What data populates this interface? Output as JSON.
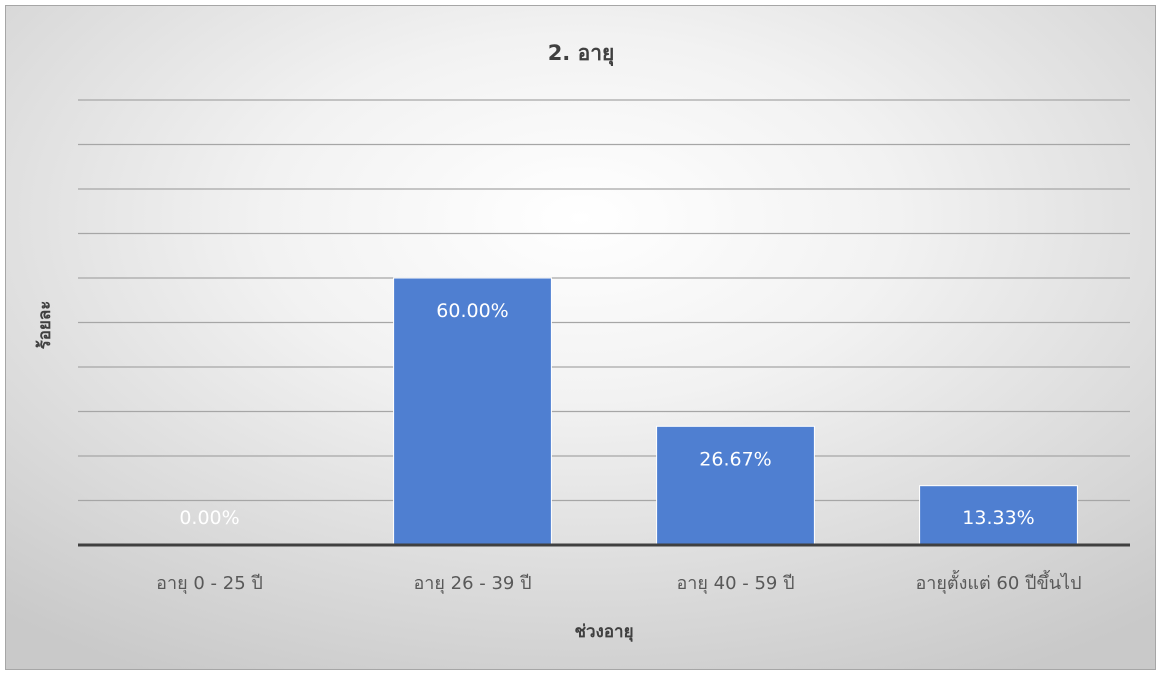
{
  "chart_data": {
    "type": "bar",
    "title": "2. อายุ",
    "xlabel": "ช่วงอายุ",
    "ylabel": "ร้อยละ",
    "categories": [
      "อายุ 0 - 25 ปี",
      "อายุ 26 - 39 ปี",
      "อายุ 40 - 59 ปี",
      "อายุตั้งแต่ 60 ปีขึ้นไป"
    ],
    "values": [
      0,
      60,
      26.67,
      13.33
    ],
    "data_labels": [
      "0.00%",
      "60.00%",
      "26.67%",
      "13.33%"
    ],
    "ylim": [
      0,
      100
    ],
    "y_grid_step": 10,
    "grid": true,
    "y_tick_labels_visible": false,
    "legend": "none",
    "bar_color": "#4F7FD1",
    "gridline_color": "#A6A6A6",
    "baseline_color": "#404040"
  }
}
